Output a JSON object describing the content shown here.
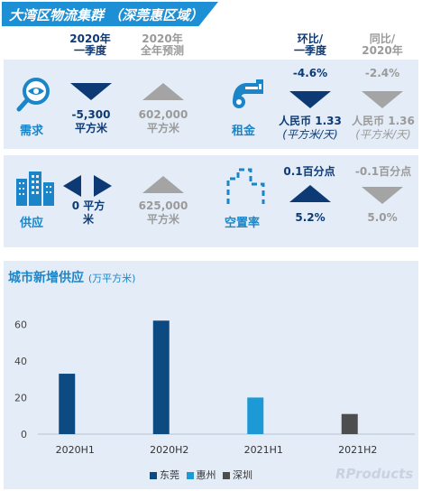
{
  "title": "大湾区物流集群 （深莞惠区域）",
  "columns": {
    "q1_2020": [
      "2020年",
      "一季度"
    ],
    "fy2020": [
      "2020年",
      "全年预测"
    ],
    "qoq": [
      "环比/",
      "一季度"
    ],
    "yoy": [
      "同比/",
      "2020年"
    ]
  },
  "demand": {
    "label": "需求",
    "icon": "magnifier-eye-icon",
    "q1_value": "-5,300",
    "q1_unit": "平方米",
    "fy_value": "602,000",
    "fy_unit": "平方米"
  },
  "rent": {
    "label": "租金",
    "icon": "key-icon",
    "qoq_change": "-4.6%",
    "qoq_value": "人民币 1.33",
    "qoq_unit": "(平方米/天)",
    "yoy_change": "-2.4%",
    "yoy_value": "人民币 1.36",
    "yoy_unit": "(平方米/天)"
  },
  "supply": {
    "label": "供应",
    "icon": "buildings-icon",
    "q1_value": "0 平方",
    "q1_unit": "米",
    "fy_value": "625,000",
    "fy_unit": "平方米"
  },
  "vacancy": {
    "label": "空置率",
    "icon": "empty-building-icon",
    "qoq_change": "0.1百分点",
    "qoq_value": "5.2%",
    "yoy_change": "-0.1百分点",
    "yoy_value": "5.0%"
  },
  "colors": {
    "navy": "#0d3a75",
    "accent_blue": "#1a85c8",
    "grey": "#a4a4a4",
    "dongguan": "#0d4a82",
    "huizhou": "#1d9ad6",
    "shenzhen": "#4d4d4d"
  },
  "chart_data": {
    "type": "bar",
    "title": "城市新增供应",
    "unit": "(万平方米)",
    "categories": [
      "2020H1",
      "2020H2",
      "2021H1",
      "2021H2"
    ],
    "series": [
      {
        "name": "东莞",
        "values": [
          33,
          62,
          0,
          0
        ]
      },
      {
        "name": "惠州",
        "values": [
          0,
          0,
          20,
          0
        ]
      },
      {
        "name": "深圳",
        "values": [
          0,
          0,
          0,
          11
        ]
      }
    ],
    "yticks": [
      "0",
      "20",
      "40",
      "60"
    ],
    "ylim": [
      0,
      70
    ],
    "grid": false,
    "legend_position": "bottom"
  },
  "watermark": "RProducts"
}
